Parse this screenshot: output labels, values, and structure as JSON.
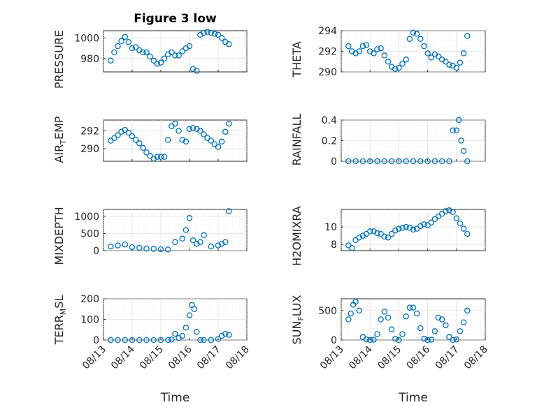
{
  "figure_title": "Figure 3 low",
  "colors": {
    "marker": "#0072BD",
    "axis": "#262626"
  },
  "chart_data": [
    {
      "type": "scatter",
      "title": "Figure 3 low",
      "ylabel": "PRESSURE",
      "yticks": [
        "980",
        "1000"
      ],
      "ytick_values": [
        980,
        1000
      ],
      "ylim": [
        967,
        1007
      ],
      "xlim": [
        "08/13",
        "08/18"
      ],
      "x": [
        "2015-08-13 06:00",
        "2015-08-13 09:00",
        "2015-08-13 12:00",
        "2015-08-13 15:00",
        "2015-08-13 18:00",
        "2015-08-13 21:00",
        "2015-08-14 00:00",
        "2015-08-14 03:00",
        "2015-08-14 06:00",
        "2015-08-14 09:00",
        "2015-08-14 12:00",
        "2015-08-14 15:00",
        "2015-08-14 18:00",
        "2015-08-14 21:00",
        "2015-08-15 00:00",
        "2015-08-15 03:00",
        "2015-08-15 06:00",
        "2015-08-15 09:00",
        "2015-08-15 12:00",
        "2015-08-15 15:00",
        "2015-08-15 18:00",
        "2015-08-15 21:00",
        "2015-08-16 00:00",
        "2015-08-16 03:00",
        "2015-08-16 06:00",
        "2015-08-16 09:00",
        "2015-08-16 12:00",
        "2015-08-16 15:00",
        "2015-08-16 18:00",
        "2015-08-16 21:00",
        "2015-08-17 00:00",
        "2015-08-17 03:00",
        "2015-08-17 06:00",
        "2015-08-17 09:00"
      ],
      "y": [
        978,
        986,
        992,
        997,
        1001,
        996,
        990,
        991,
        988,
        986,
        986,
        982,
        978,
        975,
        976,
        980,
        984,
        986,
        983,
        983,
        987,
        990,
        992,
        970,
        968,
        1003,
        1005,
        1006,
        1005,
        1004,
        1003,
        1000,
        996,
        994
      ]
    },
    {
      "type": "scatter",
      "ylabel": "THETA",
      "yticks": [
        "290",
        "292",
        "294"
      ],
      "ytick_values": [
        290,
        292,
        294
      ],
      "ylim": [
        290,
        294
      ],
      "x": [
        "2015-08-13 06:00",
        "2015-08-13 09:00",
        "2015-08-13 12:00",
        "2015-08-13 15:00",
        "2015-08-13 18:00",
        "2015-08-13 21:00",
        "2015-08-14 00:00",
        "2015-08-14 03:00",
        "2015-08-14 06:00",
        "2015-08-14 09:00",
        "2015-08-14 12:00",
        "2015-08-14 15:00",
        "2015-08-14 18:00",
        "2015-08-14 21:00",
        "2015-08-15 00:00",
        "2015-08-15 03:00",
        "2015-08-15 06:00",
        "2015-08-15 09:00",
        "2015-08-15 12:00",
        "2015-08-15 15:00",
        "2015-08-15 18:00",
        "2015-08-15 21:00",
        "2015-08-16 00:00",
        "2015-08-16 03:00",
        "2015-08-16 06:00",
        "2015-08-16 09:00",
        "2015-08-16 12:00",
        "2015-08-16 15:00",
        "2015-08-16 18:00",
        "2015-08-16 21:00",
        "2015-08-17 00:00",
        "2015-08-17 03:00",
        "2015-08-17 06:00",
        "2015-08-17 09:00"
      ],
      "y": [
        292.5,
        292.0,
        291.8,
        292.0,
        292.5,
        292.6,
        292.0,
        291.8,
        292.2,
        292.3,
        291.6,
        291.0,
        290.5,
        290.3,
        290.4,
        290.8,
        291.2,
        293.2,
        293.8,
        293.7,
        293.2,
        292.5,
        291.8,
        291.4,
        291.7,
        291.5,
        291.2,
        291.0,
        290.7,
        290.6,
        290.4,
        290.9,
        291.8,
        293.5
      ]
    },
    {
      "type": "scatter",
      "ylabel": "AIR_TEMP",
      "yticks": [
        "290",
        "292"
      ],
      "ytick_values": [
        290,
        292
      ],
      "ylim": [
        288.6,
        293.2
      ],
      "x": [
        "2015-08-13 06:00",
        "2015-08-13 09:00",
        "2015-08-13 12:00",
        "2015-08-13 15:00",
        "2015-08-13 18:00",
        "2015-08-13 21:00",
        "2015-08-14 00:00",
        "2015-08-14 03:00",
        "2015-08-14 06:00",
        "2015-08-14 09:00",
        "2015-08-14 12:00",
        "2015-08-14 15:00",
        "2015-08-14 18:00",
        "2015-08-14 21:00",
        "2015-08-15 00:00",
        "2015-08-15 03:00",
        "2015-08-15 06:00",
        "2015-08-15 09:00",
        "2015-08-15 12:00",
        "2015-08-15 15:00",
        "2015-08-15 18:00",
        "2015-08-15 21:00",
        "2015-08-16 00:00",
        "2015-08-16 03:00",
        "2015-08-16 06:00",
        "2015-08-16 09:00",
        "2015-08-16 12:00",
        "2015-08-16 15:00",
        "2015-08-16 18:00",
        "2015-08-16 21:00",
        "2015-08-17 00:00",
        "2015-08-17 03:00",
        "2015-08-17 06:00",
        "2015-08-17 09:00"
      ],
      "y": [
        290.9,
        291.2,
        291.5,
        291.9,
        292.1,
        291.8,
        291.4,
        291.0,
        290.6,
        290.1,
        289.6,
        289.2,
        288.9,
        289.1,
        289.1,
        289.1,
        291.0,
        292.5,
        292.8,
        292.0,
        291.0,
        290.8,
        292.2,
        292.3,
        292.2,
        292.0,
        291.6,
        291.2,
        290.9,
        290.5,
        290.2,
        290.8,
        291.9,
        292.8
      ]
    },
    {
      "type": "scatter",
      "ylabel": "RAINFALL",
      "yticks": [
        "0",
        "0.2",
        "0.4"
      ],
      "ytick_values": [
        0,
        0.2,
        0.4
      ],
      "ylim": [
        0,
        0.4
      ],
      "x": [
        "2015-08-13 06:00",
        "2015-08-13 12:00",
        "2015-08-13 18:00",
        "2015-08-14 00:00",
        "2015-08-14 06:00",
        "2015-08-14 12:00",
        "2015-08-14 18:00",
        "2015-08-15 00:00",
        "2015-08-15 06:00",
        "2015-08-15 12:00",
        "2015-08-15 18:00",
        "2015-08-16 00:00",
        "2015-08-16 06:00",
        "2015-08-16 12:00",
        "2015-08-16 18:00",
        "2015-08-16 21:00",
        "2015-08-17 00:00",
        "2015-08-17 02:00",
        "2015-08-17 04:00",
        "2015-08-17 06:00",
        "2015-08-17 09:00"
      ],
      "y": [
        0,
        0,
        0,
        0,
        0,
        0,
        0,
        0,
        0,
        0,
        0,
        0,
        0,
        0,
        0,
        0.3,
        0.3,
        0.4,
        0.2,
        0.1,
        0
      ]
    },
    {
      "type": "scatter",
      "ylabel": "MIXDEPTH",
      "yticks": [
        "0",
        "500",
        "1000"
      ],
      "ytick_values": [
        0,
        500,
        1000
      ],
      "ylim": [
        0,
        1200
      ],
      "x": [
        "2015-08-13 06:00",
        "2015-08-13 12:00",
        "2015-08-13 18:00",
        "2015-08-14 00:00",
        "2015-08-14 06:00",
        "2015-08-14 12:00",
        "2015-08-14 18:00",
        "2015-08-15 00:00",
        "2015-08-15 06:00",
        "2015-08-15 12:00",
        "2015-08-15 18:00",
        "2015-08-15 21:00",
        "2015-08-16 00:00",
        "2015-08-16 03:00",
        "2015-08-16 06:00",
        "2015-08-16 09:00",
        "2015-08-16 12:00",
        "2015-08-16 18:00",
        "2015-08-17 00:00",
        "2015-08-17 03:00",
        "2015-08-17 06:00",
        "2015-08-17 09:00"
      ],
      "y": [
        120,
        150,
        180,
        100,
        80,
        60,
        50,
        40,
        30,
        250,
        350,
        600,
        950,
        300,
        200,
        250,
        450,
        120,
        150,
        200,
        250,
        1150
      ]
    },
    {
      "type": "scatter",
      "ylabel": "H2OMIXRA",
      "yticks": [
        "8",
        "10"
      ],
      "ytick_values": [
        8,
        10
      ],
      "ylim": [
        7.3,
        12
      ],
      "x": [
        "2015-08-13 06:00",
        "2015-08-13 09:00",
        "2015-08-13 12:00",
        "2015-08-13 15:00",
        "2015-08-13 18:00",
        "2015-08-13 21:00",
        "2015-08-14 00:00",
        "2015-08-14 03:00",
        "2015-08-14 06:00",
        "2015-08-14 09:00",
        "2015-08-14 12:00",
        "2015-08-14 15:00",
        "2015-08-14 18:00",
        "2015-08-14 21:00",
        "2015-08-15 00:00",
        "2015-08-15 03:00",
        "2015-08-15 06:00",
        "2015-08-15 09:00",
        "2015-08-15 12:00",
        "2015-08-15 15:00",
        "2015-08-15 18:00",
        "2015-08-15 21:00",
        "2015-08-16 00:00",
        "2015-08-16 03:00",
        "2015-08-16 06:00",
        "2015-08-16 09:00",
        "2015-08-16 12:00",
        "2015-08-16 15:00",
        "2015-08-16 18:00",
        "2015-08-16 21:00",
        "2015-08-17 00:00",
        "2015-08-17 03:00",
        "2015-08-17 06:00",
        "2015-08-17 09:00"
      ],
      "y": [
        7.9,
        7.6,
        8.5,
        8.8,
        9.0,
        9.2,
        9.5,
        9.5,
        9.3,
        9.2,
        8.9,
        8.8,
        9.2,
        9.6,
        9.8,
        9.9,
        10.0,
        9.9,
        9.7,
        9.8,
        10.1,
        10.3,
        10.2,
        10.5,
        10.9,
        11.2,
        11.5,
        11.8,
        11.9,
        11.7,
        11.0,
        10.4,
        9.8,
        9.2
      ]
    },
    {
      "type": "scatter",
      "ylabel": "TERR_MSL",
      "xlabel": "Time",
      "yticks": [
        "0",
        "100",
        "200"
      ],
      "ytick_values": [
        0,
        100,
        200
      ],
      "ylim": [
        0,
        200
      ],
      "xticks": [
        "08/13",
        "08/14",
        "08/15",
        "08/16",
        "08/17",
        "08/18"
      ],
      "x": [
        "2015-08-13 06:00",
        "2015-08-13 12:00",
        "2015-08-13 18:00",
        "2015-08-14 00:00",
        "2015-08-14 06:00",
        "2015-08-14 12:00",
        "2015-08-14 18:00",
        "2015-08-15 00:00",
        "2015-08-15 06:00",
        "2015-08-15 09:00",
        "2015-08-15 12:00",
        "2015-08-15 15:00",
        "2015-08-15 18:00",
        "2015-08-15 21:00",
        "2015-08-16 00:00",
        "2015-08-16 02:00",
        "2015-08-16 04:00",
        "2015-08-16 06:00",
        "2015-08-16 09:00",
        "2015-08-16 12:00",
        "2015-08-16 18:00",
        "2015-08-17 00:00",
        "2015-08-17 03:00",
        "2015-08-17 06:00",
        "2015-08-17 09:00"
      ],
      "y": [
        0,
        0,
        0,
        0,
        0,
        0,
        0,
        0,
        0,
        2,
        30,
        10,
        20,
        60,
        120,
        170,
        150,
        40,
        0,
        0,
        0,
        5,
        20,
        30,
        25
      ]
    },
    {
      "type": "scatter",
      "ylabel": "SUN_FLUX",
      "xlabel": "Time",
      "yticks": [
        "0",
        "500"
      ],
      "ytick_values": [
        0,
        500
      ],
      "ylim": [
        0,
        700
      ],
      "xticks": [
        "08/13",
        "08/14",
        "08/15",
        "08/16",
        "08/17",
        "08/18"
      ],
      "x": [
        "2015-08-13 06:00",
        "2015-08-13 08:00",
        "2015-08-13 10:00",
        "2015-08-13 12:00",
        "2015-08-13 15:00",
        "2015-08-13 18:00",
        "2015-08-13 21:00",
        "2015-08-14 00:00",
        "2015-08-14 03:00",
        "2015-08-14 06:00",
        "2015-08-14 09:00",
        "2015-08-14 12:00",
        "2015-08-14 15:00",
        "2015-08-14 18:00",
        "2015-08-14 21:00",
        "2015-08-15 00:00",
        "2015-08-15 03:00",
        "2015-08-15 06:00",
        "2015-08-15 09:00",
        "2015-08-15 12:00",
        "2015-08-15 15:00",
        "2015-08-15 18:00",
        "2015-08-15 21:00",
        "2015-08-16 00:00",
        "2015-08-16 03:00",
        "2015-08-16 06:00",
        "2015-08-16 09:00",
        "2015-08-16 12:00",
        "2015-08-16 15:00",
        "2015-08-16 18:00",
        "2015-08-16 21:00",
        "2015-08-17 00:00",
        "2015-08-17 03:00",
        "2015-08-17 06:00",
        "2015-08-17 09:00"
      ],
      "y": [
        350,
        450,
        600,
        650,
        500,
        50,
        10,
        0,
        5,
        100,
        350,
        480,
        380,
        180,
        20,
        0,
        100,
        400,
        550,
        550,
        450,
        200,
        20,
        0,
        5,
        150,
        380,
        350,
        250,
        50,
        0,
        10,
        150,
        300,
        500
      ]
    }
  ]
}
